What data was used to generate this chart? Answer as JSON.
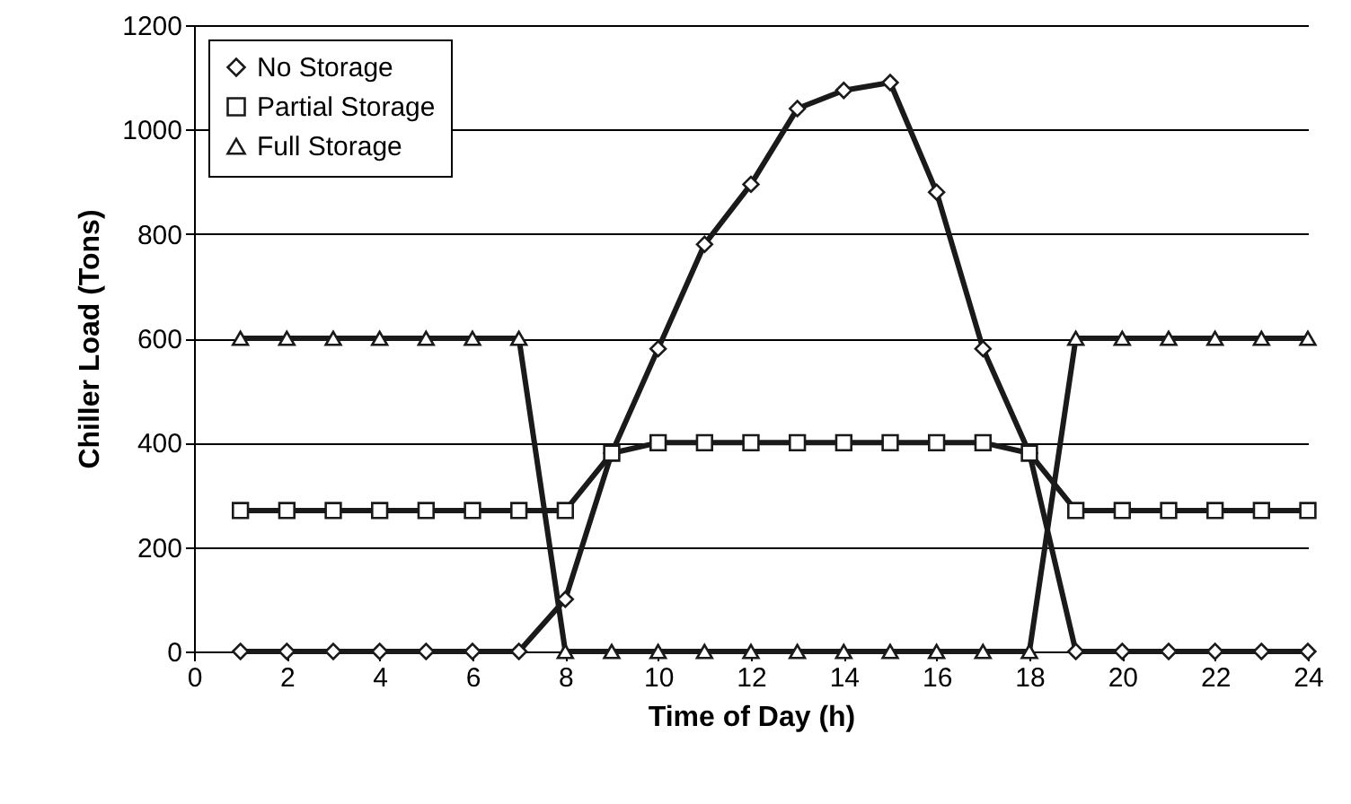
{
  "chart_data": {
    "type": "line",
    "xlabel": "Time of Day (h)",
    "ylabel": "Chiller Load (Tons)",
    "x": [
      1,
      2,
      3,
      4,
      5,
      6,
      7,
      8,
      9,
      10,
      11,
      12,
      13,
      14,
      15,
      16,
      17,
      18,
      19,
      20,
      21,
      22,
      23,
      24
    ],
    "series": [
      {
        "name": "No Storage",
        "color": "#1a1a1a",
        "marker": "diamond",
        "values": [
          0,
          0,
          0,
          0,
          0,
          0,
          0,
          100,
          380,
          580,
          780,
          895,
          1040,
          1075,
          1090,
          880,
          580,
          380,
          0,
          0,
          0,
          0,
          0,
          0
        ]
      },
      {
        "name": "Partial Storage",
        "color": "#1a1a1a",
        "marker": "square",
        "values": [
          270,
          270,
          270,
          270,
          270,
          270,
          270,
          270,
          380,
          400,
          400,
          400,
          400,
          400,
          400,
          400,
          400,
          380,
          270,
          270,
          270,
          270,
          270,
          270
        ]
      },
      {
        "name": "Full Storage",
        "color": "#1a1a1a",
        "marker": "triangle",
        "values": [
          600,
          600,
          600,
          600,
          600,
          600,
          600,
          0,
          0,
          0,
          0,
          0,
          0,
          0,
          0,
          0,
          0,
          0,
          600,
          600,
          600,
          600,
          600,
          600
        ]
      }
    ],
    "xlim": [
      0,
      24
    ],
    "xticks": [
      0,
      2,
      4,
      6,
      8,
      10,
      12,
      14,
      16,
      18,
      20,
      22,
      24
    ],
    "ylim": [
      0,
      1200
    ],
    "yticks": [
      0,
      200,
      400,
      600,
      800,
      {
        "value": 1000,
        "label": "1000"
      },
      {
        "value": 1200,
        "label": "1200"
      }
    ],
    "grid": "y",
    "legend": "top left",
    "line_style": "solid"
  }
}
